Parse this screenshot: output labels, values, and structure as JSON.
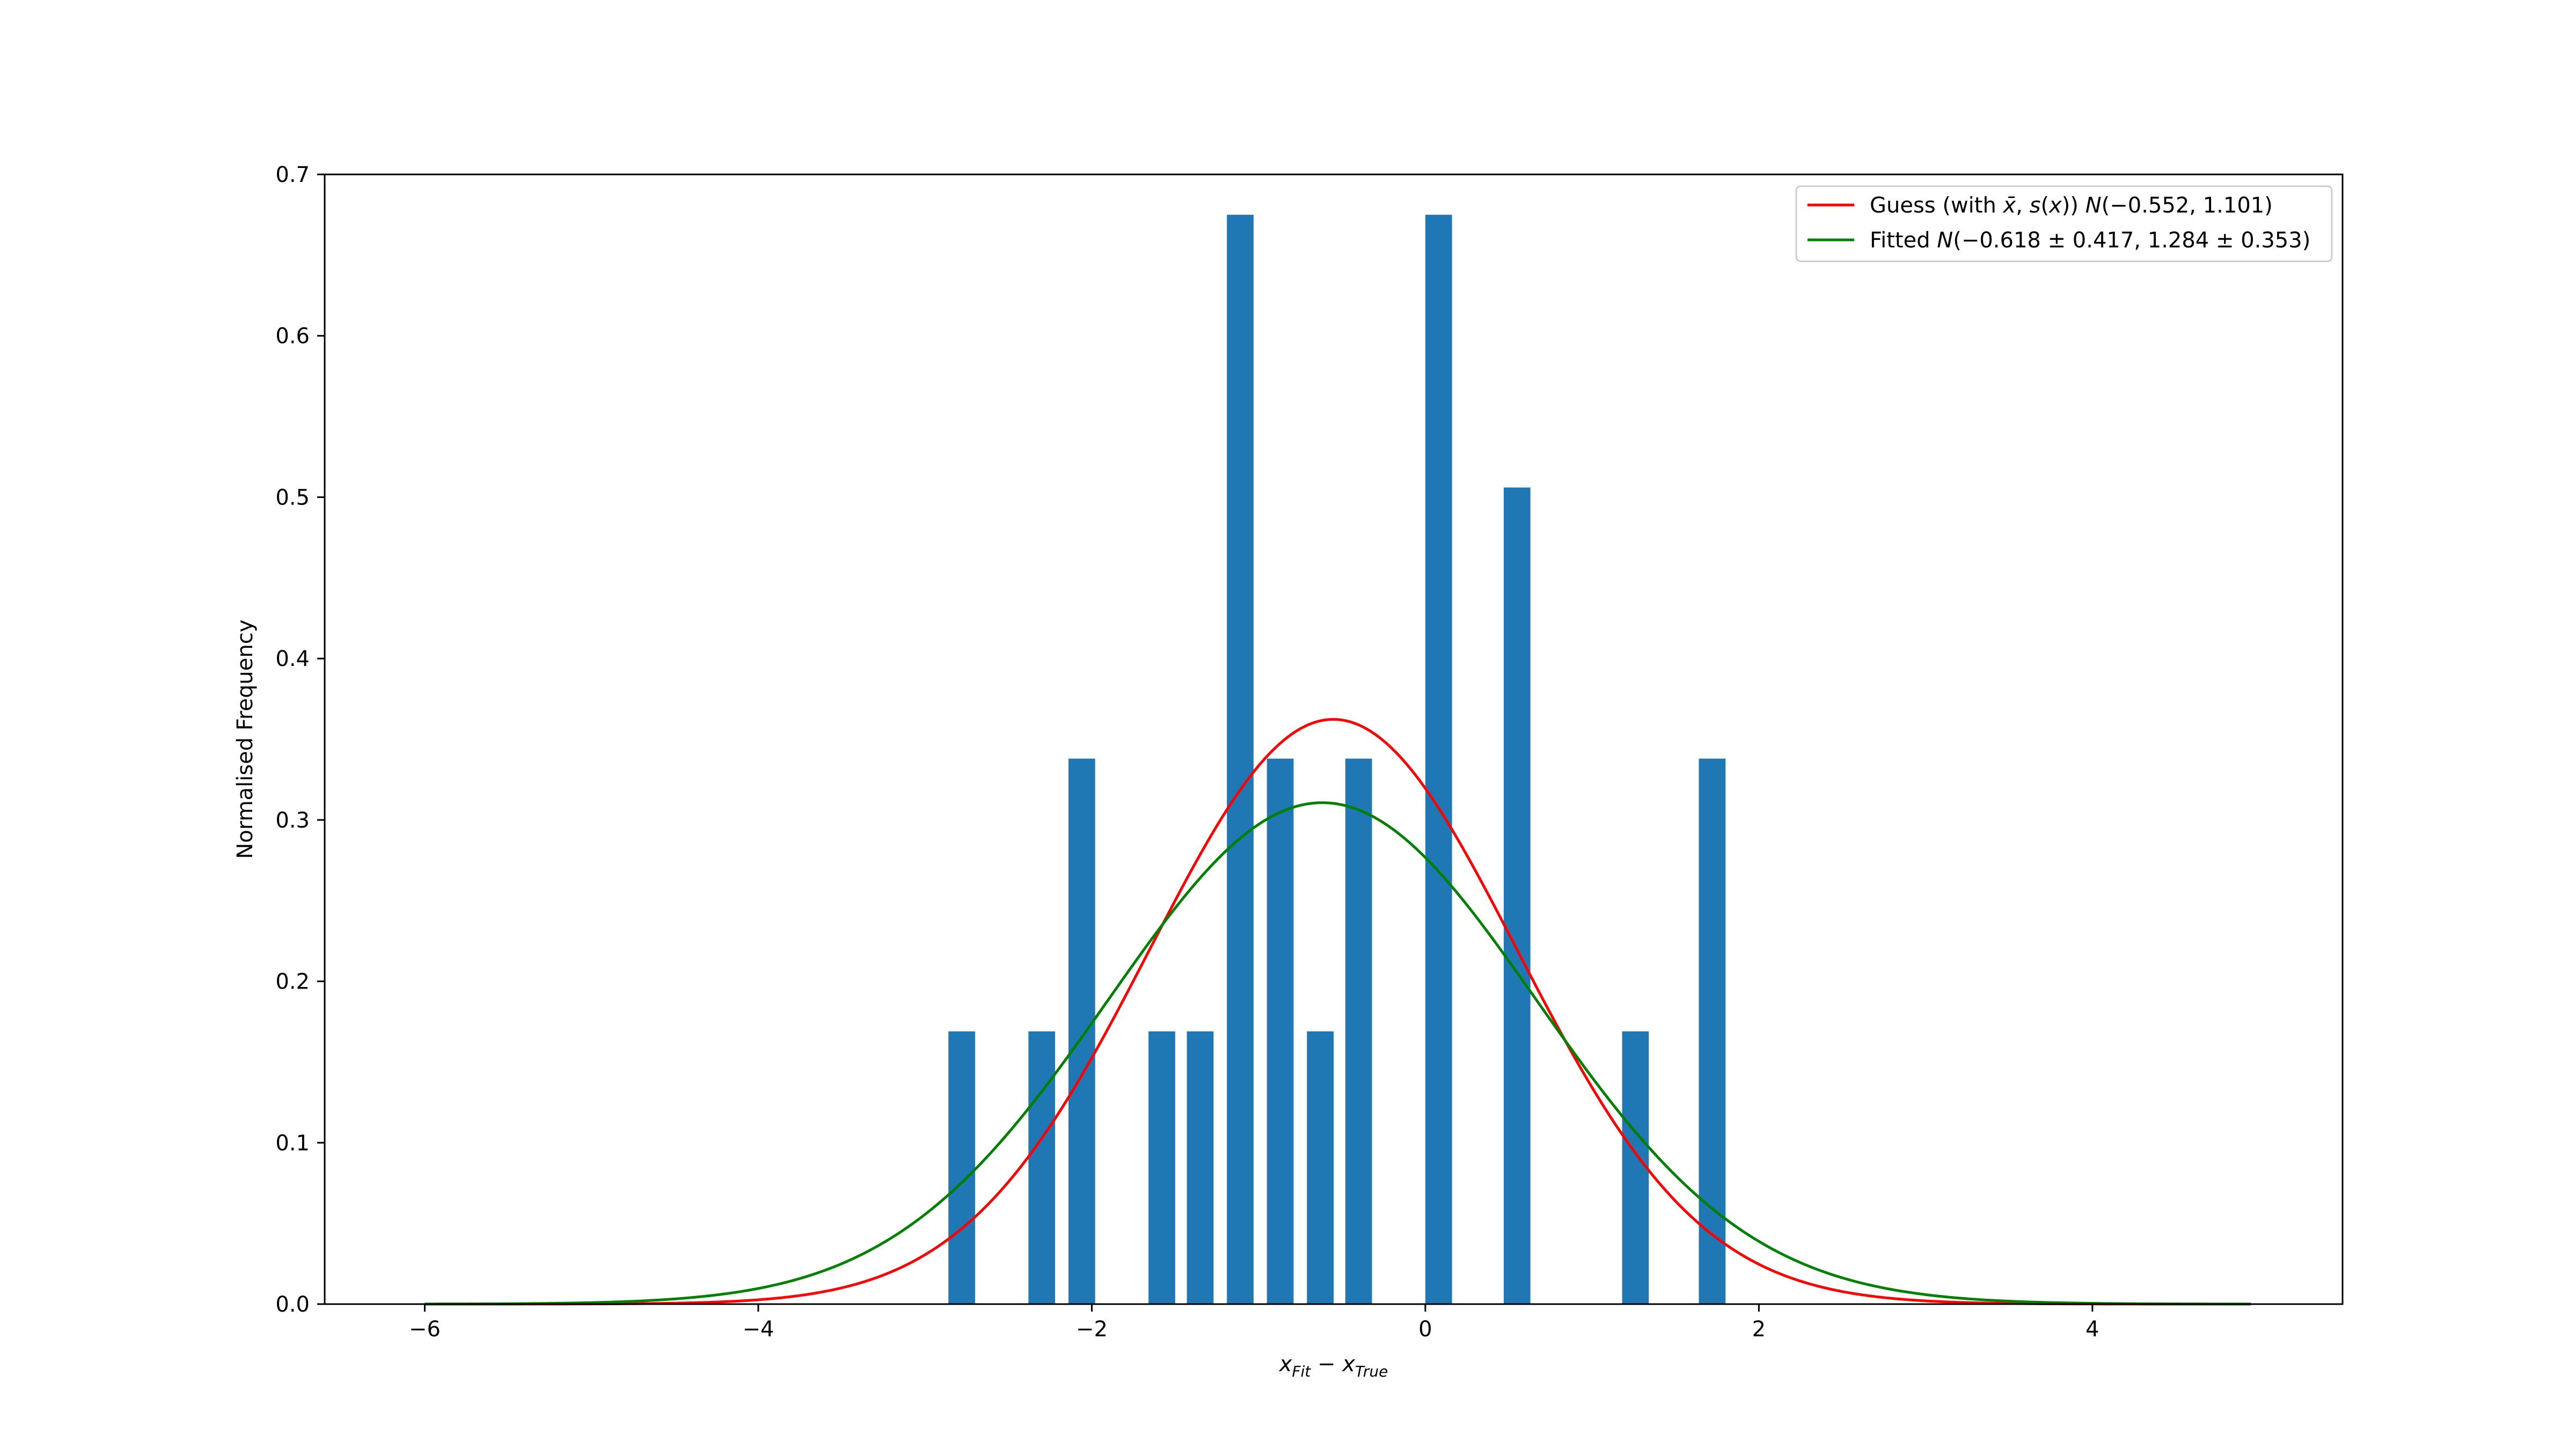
{
  "chart_data": {
    "type": "bar",
    "xlabel": "x_{Fit} - x_{True}",
    "ylabel": "Normalised Frequency",
    "xlim": [
      -6.6,
      5.5
    ],
    "ylim": [
      0,
      0.7
    ],
    "x_ticks": [
      -6,
      -4,
      -2,
      0,
      2,
      4
    ],
    "y_ticks": [
      0.0,
      0.1,
      0.2,
      0.3,
      0.4,
      0.5,
      0.6,
      0.7
    ],
    "bar_width": 0.16,
    "bars": {
      "x": [
        -2.78,
        -2.3,
        -2.06,
        -1.58,
        -1.35,
        -1.11,
        -0.87,
        -0.63,
        -0.4,
        0.08,
        0.55,
        1.26,
        1.72
      ],
      "values": [
        0.169,
        0.169,
        0.338,
        0.169,
        0.169,
        0.675,
        0.338,
        0.169,
        0.338,
        0.675,
        0.506,
        0.169,
        0.338
      ],
      "color": "#1f77b4"
    },
    "series": [
      {
        "label": "Guess (with x̄, s(x)) N(−0.552, 1.101)",
        "legend_parts": [
          {
            "text": "Guess (with ",
            "italic": false
          },
          {
            "text": "x̄",
            "italic": true
          },
          {
            "text": ", ",
            "italic": false
          },
          {
            "text": "s",
            "italic": true
          },
          {
            "text": "(",
            "italic": false
          },
          {
            "text": "x",
            "italic": true
          },
          {
            "text": ")) ",
            "italic": false
          },
          {
            "text": "N",
            "italic": true
          },
          {
            "text": "(−0.552, 1.101)",
            "italic": false
          }
        ],
        "mean": -0.552,
        "sd": 1.101,
        "x_range": [
          -6,
          4.95
        ],
        "color": "#ff0000"
      },
      {
        "label": "Fitted N(−0.618 ± 0.417, 1.284 ± 0.353)",
        "legend_parts": [
          {
            "text": "Fitted ",
            "italic": false
          },
          {
            "text": "N",
            "italic": true
          },
          {
            "text": "(−0.618 ± 0.417, 1.284 ± 0.353)",
            "italic": false
          }
        ],
        "mean": -0.618,
        "sd": 1.284,
        "x_range": [
          -6,
          4.95
        ],
        "color": "#008000"
      }
    ],
    "legend_position": "upper right",
    "grid": false
  }
}
